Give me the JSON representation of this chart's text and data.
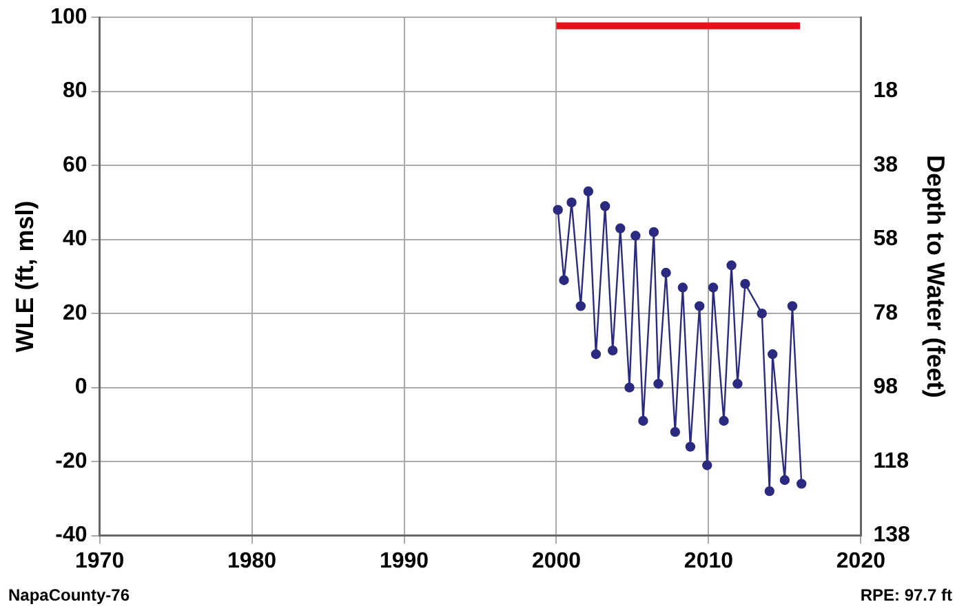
{
  "chart_data": {
    "type": "line",
    "xlabel": null,
    "ylabel": "WLE (ft, msl)",
    "y2label": "Depth to Water (feet)",
    "xlim": [
      1970,
      2020
    ],
    "xticks": [
      1970,
      1980,
      1990,
      2000,
      2010,
      2020
    ],
    "ylim": [
      -40,
      100
    ],
    "yticks": [
      -40,
      -20,
      0,
      20,
      40,
      60,
      80,
      100
    ],
    "y2lim": [
      138,
      -2
    ],
    "y2ticks": [
      138,
      118,
      98,
      78,
      58,
      38,
      18
    ],
    "grid": true,
    "legend": false,
    "marker": "circle",
    "line_style": "solid",
    "series": [
      {
        "color": "#2a2a80",
        "x": [
          2000.1,
          2000.5,
          2001.0,
          2001.6,
          2002.1,
          2002.6,
          2003.2,
          2003.7,
          2004.2,
          2004.8,
          2005.2,
          2005.7,
          2006.4,
          2006.7,
          2007.2,
          2007.8,
          2008.3,
          2008.8,
          2009.4,
          2009.9,
          2010.3,
          2011.0,
          2011.5,
          2011.9,
          2012.4,
          2013.5,
          2014.0,
          2014.2,
          2015.0,
          2015.5,
          2016.1
        ],
        "values": [
          48,
          29,
          50,
          22,
          53,
          9,
          49,
          10,
          43,
          0,
          41,
          -9,
          42,
          1,
          31,
          -12,
          27,
          -16,
          22,
          -21,
          27,
          -9,
          33,
          1,
          28,
          20,
          -28,
          9,
          -25,
          22,
          -26
        ]
      },
      {
        "color": "#e8101c",
        "marker": "none",
        "x": [
          2000,
          2016
        ],
        "values": [
          97.7,
          97.7
        ]
      }
    ],
    "annotations": [
      "NapaCounty-76",
      "RPE: 97.7 ft"
    ]
  }
}
